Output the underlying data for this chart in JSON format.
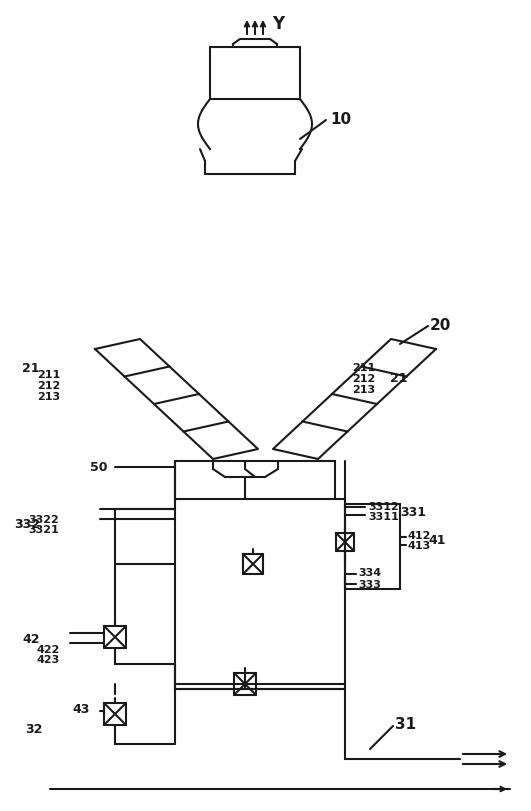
{
  "bg_color": "#ffffff",
  "line_color": "#1a1a1a",
  "lw": 1.5,
  "label_fontsize": 9,
  "label_color": "#1a1a1a",
  "figsize": [
    5.31,
    8.12
  ],
  "dpi": 100
}
